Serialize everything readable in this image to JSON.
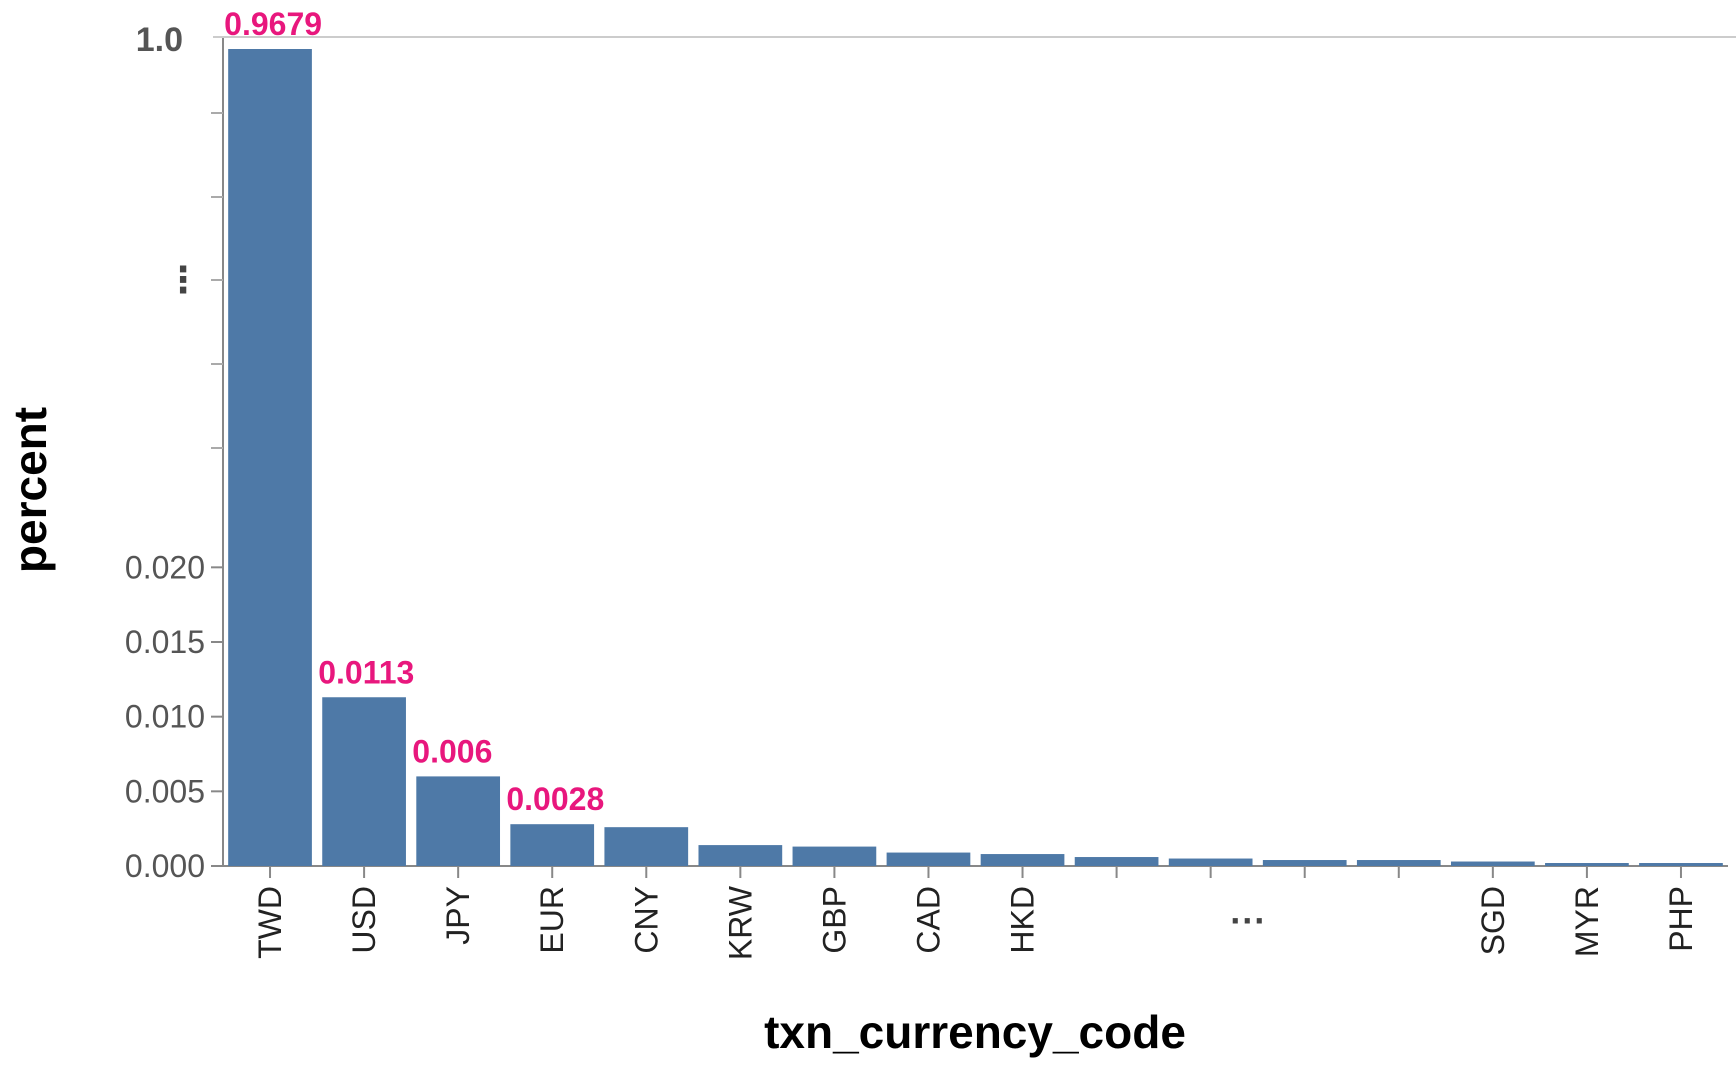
{
  "chart_data": {
    "type": "bar",
    "title": "",
    "xlabel": "txn_currency_code",
    "ylabel": "percent",
    "categories": [
      "TWD",
      "USD",
      "JPY",
      "EUR",
      "CNY",
      "KRW",
      "GBP",
      "CAD",
      "HKD",
      "",
      "",
      "",
      "",
      "SGD",
      "MYR",
      "PHP"
    ],
    "values": [
      0.9679,
      0.0113,
      0.006,
      0.0028,
      0.0026,
      0.0014,
      0.0013,
      0.0009,
      0.0008,
      0.0006,
      0.0005,
      0.0004,
      0.0004,
      0.0003,
      0.0002,
      0.0002
    ],
    "value_labels": [
      "0.9679",
      "0.0113",
      "0.006",
      "0.0028",
      "",
      "",
      "",
      "",
      "",
      "",
      "",
      "",
      "",
      "",
      "",
      ""
    ],
    "ylim": [
      0,
      1.0
    ],
    "y_axis_break": true,
    "y_ticks_lower": [
      "0.000",
      "0.005",
      "0.010",
      "0.015",
      "0.020"
    ],
    "y_tick_lower_values": [
      0,
      0.005,
      0.01,
      0.015,
      0.02
    ],
    "y_tick_top": "1.0",
    "y_break_marker": "⋮",
    "x_gap_marker": "···",
    "grid": false,
    "bar_color": "#4e79a7",
    "value_label_color": "#e8177d"
  }
}
